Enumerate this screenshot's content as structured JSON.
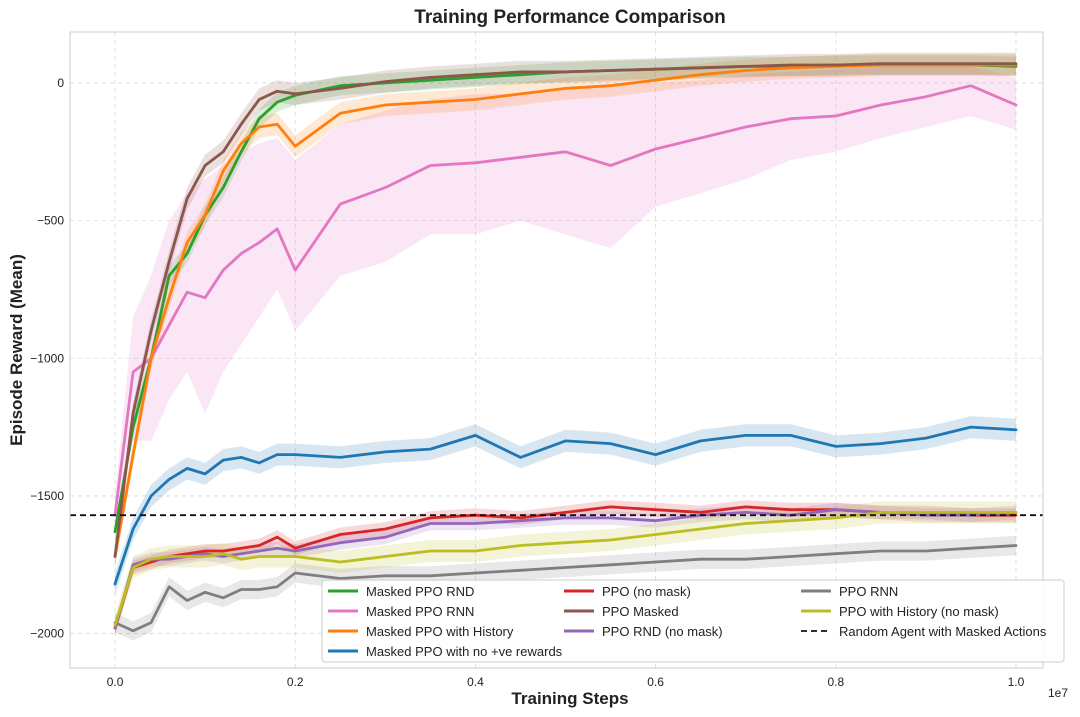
{
  "chart_data": {
    "type": "line",
    "title": "Training Performance Comparison",
    "xlabel": "Training Steps",
    "ylabel": "Episode Reward (Mean)",
    "x_offset_label": "1e7",
    "xlim": [
      -0.05,
      1.03
    ],
    "ylim": [
      -2125,
      185
    ],
    "x_ticks": [
      0.0,
      0.2,
      0.4,
      0.6,
      0.8,
      1.0
    ],
    "x_tick_labels": [
      "0.0",
      "0.2",
      "0.4",
      "0.6",
      "0.8",
      "1.0"
    ],
    "y_ticks": [
      0,
      -500,
      -1000,
      -1500,
      -2000
    ],
    "y_tick_labels": [
      "0",
      "−500",
      "−1000",
      "−1500",
      "−2000"
    ],
    "grid": true,
    "legend_position": "bottom-right",
    "legend_columns": 3,
    "x": [
      0,
      0.02,
      0.04,
      0.06,
      0.08,
      0.1,
      0.12,
      0.14,
      0.16,
      0.18,
      0.2,
      0.25,
      0.3,
      0.35,
      0.4,
      0.45,
      0.5,
      0.55,
      0.6,
      0.65,
      0.7,
      0.75,
      0.8,
      0.85,
      0.9,
      0.95,
      1.0
    ],
    "series": [
      {
        "name": "Masked PPO RND",
        "color": "#2ca02c",
        "values": [
          -1630,
          -1250,
          -1000,
          -700,
          -620,
          -480,
          -380,
          -250,
          -130,
          -70,
          -45,
          -10,
          0,
          10,
          20,
          30,
          40,
          45,
          50,
          55,
          60,
          60,
          65,
          65,
          65,
          65,
          60
        ],
        "band": 35
      },
      {
        "name": "Masked PPO RNN",
        "color": "#e377c2",
        "values": [
          -1570,
          -1050,
          -1000,
          -880,
          -760,
          -780,
          -680,
          -620,
          -580,
          -530,
          -680,
          -440,
          -380,
          -300,
          -290,
          -270,
          -250,
          -300,
          -240,
          -200,
          -160,
          -130,
          -120,
          -80,
          -50,
          -10,
          -80
        ],
        "band_lower": [
          -1650,
          -1300,
          -1300,
          -1150,
          -1050,
          -1200,
          -1050,
          -950,
          -850,
          -750,
          -900,
          -700,
          -650,
          -550,
          -550,
          -500,
          -550,
          -600,
          -450,
          -400,
          -350,
          -280,
          -250,
          -200,
          -160,
          -120,
          -170
        ],
        "band_upper": [
          -1500,
          -850,
          -700,
          -500,
          -400,
          -350,
          -300,
          -250,
          -220,
          -200,
          -280,
          -150,
          -100,
          -60,
          -40,
          -40,
          -20,
          -10,
          0,
          10,
          30,
          40,
          50,
          60,
          60,
          60,
          20
        ]
      },
      {
        "name": "Masked PPO with History",
        "color": "#ff7f0e",
        "values": [
          -1720,
          -1350,
          -1000,
          -780,
          -580,
          -480,
          -320,
          -220,
          -160,
          -150,
          -230,
          -110,
          -80,
          -70,
          -60,
          -40,
          -20,
          -10,
          10,
          30,
          45,
          55,
          60,
          65,
          65,
          65,
          65
        ],
        "band": 40
      },
      {
        "name": "Masked PPO with no +ve rewards",
        "color": "#1f77b4",
        "values": [
          -1820,
          -1620,
          -1500,
          -1440,
          -1400,
          -1420,
          -1370,
          -1360,
          -1380,
          -1350,
          -1350,
          -1360,
          -1340,
          -1330,
          -1280,
          -1360,
          -1300,
          -1310,
          -1350,
          -1300,
          -1280,
          -1280,
          -1320,
          -1310,
          -1290,
          -1250,
          -1260
        ],
        "band": 40
      },
      {
        "name": "PPO (no mask)",
        "color": "#d62728",
        "values": [
          -1980,
          -1760,
          -1740,
          -1720,
          -1710,
          -1700,
          -1700,
          -1690,
          -1680,
          -1650,
          -1690,
          -1640,
          -1620,
          -1580,
          -1570,
          -1580,
          -1560,
          -1540,
          -1550,
          -1560,
          -1540,
          -1550,
          -1550,
          -1560,
          -1560,
          -1570,
          -1570
        ],
        "band": 25
      },
      {
        "name": "PPO Masked",
        "color": "#8c564b",
        "values": [
          -1720,
          -1200,
          -900,
          -650,
          -420,
          -300,
          -250,
          -150,
          -60,
          -30,
          -40,
          -20,
          5,
          20,
          30,
          40,
          40,
          45,
          50,
          55,
          60,
          65,
          65,
          70,
          70,
          70,
          70
        ],
        "band": 40
      },
      {
        "name": "PPO RND (no mask)",
        "color": "#9467bd",
        "values": [
          -1980,
          -1750,
          -1730,
          -1730,
          -1720,
          -1710,
          -1720,
          -1710,
          -1700,
          -1690,
          -1700,
          -1670,
          -1650,
          -1600,
          -1600,
          -1590,
          -1580,
          -1580,
          -1590,
          -1570,
          -1560,
          -1570,
          -1550,
          -1560,
          -1570,
          -1570,
          -1560
        ],
        "band": 25
      },
      {
        "name": "PPO RNN",
        "color": "#7f7f7f",
        "values": [
          -1960,
          -1990,
          -1960,
          -1830,
          -1880,
          -1850,
          -1870,
          -1840,
          -1840,
          -1830,
          -1780,
          -1800,
          -1790,
          -1790,
          -1780,
          -1770,
          -1760,
          -1750,
          -1740,
          -1730,
          -1730,
          -1720,
          -1710,
          -1700,
          -1700,
          -1690,
          -1680
        ],
        "band": 35
      },
      {
        "name": "PPO with History (no mask)",
        "color": "#bcbd22",
        "values": [
          -1970,
          -1760,
          -1730,
          -1720,
          -1720,
          -1720,
          -1710,
          -1730,
          -1720,
          -1720,
          -1720,
          -1740,
          -1720,
          -1700,
          -1700,
          -1680,
          -1670,
          -1660,
          -1640,
          -1620,
          -1600,
          -1590,
          -1580,
          -1560,
          -1560,
          -1560,
          -1560
        ],
        "band": 40
      }
    ],
    "reference_line": {
      "name": "Random Agent with Masked Actions",
      "value": -1570,
      "color": "#111111",
      "style": "dashed"
    },
    "legend_order": [
      "Masked PPO RND",
      "PPO (no mask)",
      "PPO RNN",
      "Masked PPO RNN",
      "PPO Masked",
      "PPO with History (no mask)",
      "Masked PPO with History",
      "PPO RND (no mask)",
      "Random Agent with Masked Actions",
      "Masked PPO with no +ve rewards"
    ]
  }
}
